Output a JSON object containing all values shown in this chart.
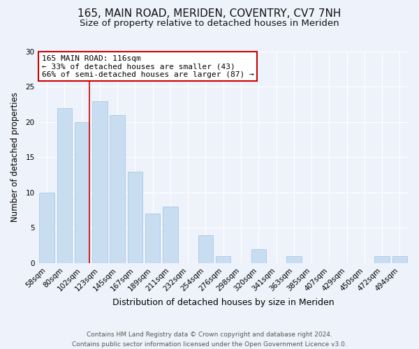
{
  "title": "165, MAIN ROAD, MERIDEN, COVENTRY, CV7 7NH",
  "subtitle": "Size of property relative to detached houses in Meriden",
  "xlabel": "Distribution of detached houses by size in Meriden",
  "ylabel": "Number of detached properties",
  "footer_line1": "Contains HM Land Registry data © Crown copyright and database right 2024.",
  "footer_line2": "Contains public sector information licensed under the Open Government Licence v3.0.",
  "categories": [
    "58sqm",
    "80sqm",
    "102sqm",
    "123sqm",
    "145sqm",
    "167sqm",
    "189sqm",
    "211sqm",
    "232sqm",
    "254sqm",
    "276sqm",
    "298sqm",
    "320sqm",
    "341sqm",
    "363sqm",
    "385sqm",
    "407sqm",
    "429sqm",
    "450sqm",
    "472sqm",
    "494sqm"
  ],
  "values": [
    10,
    22,
    20,
    23,
    21,
    13,
    7,
    8,
    0,
    4,
    1,
    0,
    2,
    0,
    1,
    0,
    0,
    0,
    0,
    1,
    1
  ],
  "bar_color": "#c8ddf0",
  "bar_edge_color": "#a8c8e8",
  "highlight_line_color": "#cc0000",
  "annotation_title": "165 MAIN ROAD: 116sqm",
  "annotation_line1": "← 33% of detached houses are smaller (43)",
  "annotation_line2": "66% of semi-detached houses are larger (87) →",
  "annotation_box_facecolor": "#ffffff",
  "annotation_box_edgecolor": "#cc0000",
  "ylim": [
    0,
    30
  ],
  "yticks": [
    0,
    5,
    10,
    15,
    20,
    25,
    30
  ],
  "background_color": "#eef2fb",
  "plot_background_color": "#eef2fb",
  "grid_color": "#ffffff",
  "title_fontsize": 11,
  "subtitle_fontsize": 9.5,
  "xlabel_fontsize": 9,
  "ylabel_fontsize": 8.5,
  "tick_fontsize": 7.5,
  "footer_fontsize": 6.5
}
